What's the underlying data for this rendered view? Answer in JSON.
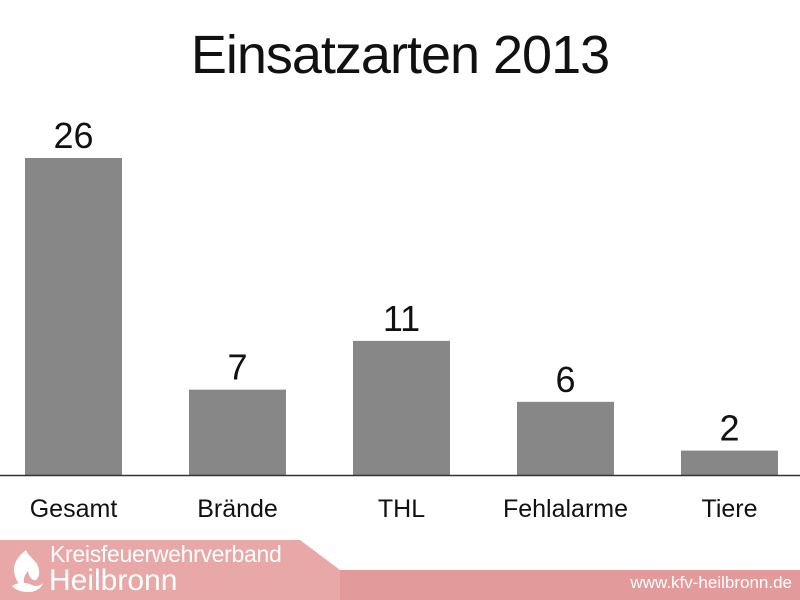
{
  "chart_data": {
    "type": "bar",
    "title": "Einsatzarten 2013",
    "xlabel": "",
    "ylabel": "",
    "categories": [
      "Gesamt",
      "Brände",
      "THL",
      "Fehlalarme",
      "Tiere"
    ],
    "values": [
      26,
      7,
      11,
      6,
      2
    ],
    "ylim": [
      0,
      26
    ],
    "grid": false,
    "legend": "none",
    "bar_color": "#878787",
    "axis_color": "#333333",
    "data_labels": true
  },
  "footer": {
    "org_line1": "Kreisfeuerwehrverband",
    "org_line2": "Heilbronn",
    "url": "www.kfv-heilbronn.de",
    "band_color": "#e39a9a",
    "tab_color": "#e8a8a8",
    "logo_icon": "fire-emblem-icon"
  }
}
